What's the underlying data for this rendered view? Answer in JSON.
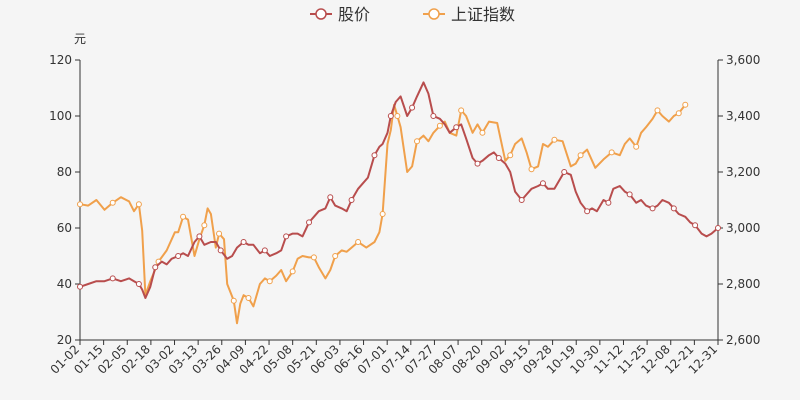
{
  "chart_data": {
    "type": "line",
    "unit_left": "元",
    "x_ticks": [
      "01-02",
      "01-15",
      "02-05",
      "02-18",
      "03-02",
      "03-13",
      "03-26",
      "04-09",
      "04-22",
      "05-08",
      "05-21",
      "06-03",
      "06-16",
      "07-01",
      "07-14",
      "07-27",
      "08-07",
      "08-20",
      "09-02",
      "09-15",
      "09-28",
      "10-19",
      "10-30",
      "11-12",
      "11-25",
      "12-08",
      "12-21",
      "12-31"
    ],
    "y_left": {
      "ticks": [
        "20",
        "40",
        "60",
        "80",
        "100",
        "120"
      ],
      "min": 20,
      "max": 120
    },
    "y_right": {
      "ticks": [
        "2,600",
        "2,800",
        "3,000",
        "3,200",
        "3,400",
        "3,600"
      ],
      "min": 2600,
      "max": 3600
    },
    "series": [
      {
        "name": "上证指数",
        "axis": "right",
        "color": "#f0a04b",
        "points": [
          [
            0,
            3085
          ],
          [
            0.5,
            3080
          ],
          [
            1,
            3100
          ],
          [
            1.5,
            3065
          ],
          [
            2,
            3090
          ],
          [
            2.5,
            3110
          ],
          [
            3,
            3095
          ],
          [
            3.3,
            3060
          ],
          [
            3.6,
            3085
          ],
          [
            3.8,
            2990
          ],
          [
            4,
            2760
          ],
          [
            4.3,
            2810
          ],
          [
            4.8,
            2880
          ],
          [
            5.3,
            2920
          ],
          [
            5.8,
            2985
          ],
          [
            6,
            2985
          ],
          [
            6.3,
            3040
          ],
          [
            6.6,
            3030
          ],
          [
            7,
            2900
          ],
          [
            7.3,
            2960
          ],
          [
            7.6,
            3010
          ],
          [
            7.8,
            3070
          ],
          [
            8,
            3050
          ],
          [
            8.3,
            2930
          ],
          [
            8.5,
            2980
          ],
          [
            8.8,
            2960
          ],
          [
            9,
            2800
          ],
          [
            9.2,
            2770
          ],
          [
            9.4,
            2740
          ],
          [
            9.6,
            2660
          ],
          [
            9.8,
            2730
          ],
          [
            10,
            2760
          ],
          [
            10.3,
            2750
          ],
          [
            10.6,
            2720
          ],
          [
            11,
            2800
          ],
          [
            11.3,
            2820
          ],
          [
            11.6,
            2810
          ],
          [
            12,
            2830
          ],
          [
            12.3,
            2850
          ],
          [
            12.6,
            2810
          ],
          [
            13,
            2845
          ],
          [
            13.3,
            2890
          ],
          [
            13.6,
            2900
          ],
          [
            14,
            2895
          ],
          [
            14.3,
            2895
          ],
          [
            14.6,
            2860
          ],
          [
            15,
            2820
          ],
          [
            15.3,
            2850
          ],
          [
            15.6,
            2900
          ],
          [
            16,
            2920
          ],
          [
            16.3,
            2915
          ],
          [
            16.6,
            2930
          ],
          [
            17,
            2950
          ],
          [
            17.5,
            2930
          ],
          [
            18,
            2950
          ],
          [
            18.3,
            2985
          ],
          [
            18.5,
            3050
          ],
          [
            18.8,
            3300
          ],
          [
            19,
            3350
          ],
          [
            19.2,
            3440
          ],
          [
            19.4,
            3400
          ],
          [
            19.6,
            3360
          ],
          [
            20,
            3200
          ],
          [
            20.3,
            3220
          ],
          [
            20.6,
            3310
          ],
          [
            21,
            3330
          ],
          [
            21.3,
            3310
          ],
          [
            21.6,
            3340
          ],
          [
            22,
            3365
          ],
          [
            22.3,
            3380
          ],
          [
            22.6,
            3340
          ],
          [
            23,
            3330
          ],
          [
            23.3,
            3420
          ],
          [
            23.6,
            3400
          ],
          [
            24,
            3340
          ],
          [
            24.3,
            3370
          ],
          [
            24.6,
            3340
          ],
          [
            25,
            3380
          ],
          [
            25.5,
            3375
          ],
          [
            26,
            3240
          ],
          [
            26.3,
            3260
          ],
          [
            26.6,
            3300
          ],
          [
            27,
            3320
          ],
          [
            27.3,
            3270
          ],
          [
            27.6,
            3210
          ],
          [
            28,
            3220
          ],
          [
            28.3,
            3300
          ],
          [
            28.6,
            3290
          ],
          [
            29,
            3315
          ],
          [
            29.5,
            3310
          ],
          [
            30,
            3220
          ],
          [
            30.3,
            3230
          ],
          [
            30.6,
            3260
          ],
          [
            31,
            3280
          ],
          [
            31.5,
            3215
          ],
          [
            32,
            3245
          ],
          [
            32.5,
            3270
          ],
          [
            33,
            3260
          ],
          [
            33.3,
            3300
          ],
          [
            33.6,
            3320
          ],
          [
            34,
            3290
          ],
          [
            34.3,
            3340
          ],
          [
            34.6,
            3360
          ],
          [
            35,
            3390
          ],
          [
            35.3,
            3420
          ],
          [
            35.6,
            3400
          ],
          [
            36,
            3380
          ],
          [
            36.3,
            3400
          ],
          [
            36.6,
            3410
          ],
          [
            37,
            3440
          ]
        ]
      },
      {
        "name": "股价",
        "axis": "left",
        "color": "#b84d4d",
        "points": [
          [
            0,
            39
          ],
          [
            0.5,
            40
          ],
          [
            1,
            41
          ],
          [
            1.5,
            41
          ],
          [
            2,
            42
          ],
          [
            2.5,
            41
          ],
          [
            3,
            42
          ],
          [
            3.3,
            41
          ],
          [
            3.6,
            40
          ],
          [
            3.8,
            38
          ],
          [
            4,
            35
          ],
          [
            4.3,
            39
          ],
          [
            4.6,
            46
          ],
          [
            5,
            48
          ],
          [
            5.3,
            47
          ],
          [
            5.6,
            49
          ],
          [
            6,
            50
          ],
          [
            6.3,
            51
          ],
          [
            6.6,
            50
          ],
          [
            7,
            55
          ],
          [
            7.3,
            57
          ],
          [
            7.6,
            54
          ],
          [
            8,
            55
          ],
          [
            8.3,
            55
          ],
          [
            8.6,
            52
          ],
          [
            9,
            49
          ],
          [
            9.3,
            50
          ],
          [
            9.6,
            53
          ],
          [
            10,
            55
          ],
          [
            10.3,
            54
          ],
          [
            10.6,
            54
          ],
          [
            11,
            51
          ],
          [
            11.3,
            52
          ],
          [
            11.6,
            50
          ],
          [
            12,
            51
          ],
          [
            12.3,
            52
          ],
          [
            12.6,
            57
          ],
          [
            13,
            58
          ],
          [
            13.3,
            58
          ],
          [
            13.6,
            57
          ],
          [
            14,
            62
          ],
          [
            14.3,
            64
          ],
          [
            14.6,
            66
          ],
          [
            15,
            67
          ],
          [
            15.3,
            71
          ],
          [
            15.6,
            68
          ],
          [
            16,
            67
          ],
          [
            16.3,
            66
          ],
          [
            16.6,
            70
          ],
          [
            17,
            74
          ],
          [
            17.3,
            76
          ],
          [
            17.6,
            78
          ],
          [
            18,
            86
          ],
          [
            18.3,
            89
          ],
          [
            18.5,
            90
          ],
          [
            18.8,
            94
          ],
          [
            19,
            100
          ],
          [
            19.3,
            105
          ],
          [
            19.6,
            107
          ],
          [
            20,
            100
          ],
          [
            20.3,
            103
          ],
          [
            20.6,
            107
          ],
          [
            21,
            112
          ],
          [
            21.3,
            108
          ],
          [
            21.6,
            100
          ],
          [
            22,
            99
          ],
          [
            22.3,
            97
          ],
          [
            22.6,
            94
          ],
          [
            23,
            96
          ],
          [
            23.3,
            97
          ],
          [
            23.6,
            92
          ],
          [
            24,
            85
          ],
          [
            24.3,
            83
          ],
          [
            24.6,
            84
          ],
          [
            25,
            86
          ],
          [
            25.3,
            87
          ],
          [
            25.6,
            85
          ],
          [
            26,
            83
          ],
          [
            26.3,
            80
          ],
          [
            26.6,
            73
          ],
          [
            27,
            70
          ],
          [
            27.3,
            72
          ],
          [
            27.6,
            74
          ],
          [
            28,
            75
          ],
          [
            28.3,
            76
          ],
          [
            28.6,
            74
          ],
          [
            29,
            74
          ],
          [
            29.3,
            77
          ],
          [
            29.6,
            80
          ],
          [
            30,
            79
          ],
          [
            30.3,
            73
          ],
          [
            30.6,
            69
          ],
          [
            31,
            66
          ],
          [
            31.3,
            67
          ],
          [
            31.6,
            66
          ],
          [
            32,
            70
          ],
          [
            32.3,
            69
          ],
          [
            32.6,
            74
          ],
          [
            33,
            75
          ],
          [
            33.3,
            73
          ],
          [
            33.6,
            72
          ],
          [
            34,
            69
          ],
          [
            34.3,
            70
          ],
          [
            34.6,
            68
          ],
          [
            35,
            67
          ],
          [
            35.3,
            68
          ],
          [
            35.6,
            70
          ],
          [
            36,
            69
          ],
          [
            36.3,
            67
          ],
          [
            36.6,
            65
          ],
          [
            37,
            64
          ],
          [
            37.3,
            62
          ],
          [
            37.6,
            61
          ],
          [
            38,
            58
          ],
          [
            38.3,
            57
          ],
          [
            38.6,
            58
          ],
          [
            39,
            60
          ]
        ]
      }
    ],
    "x_max": 39
  }
}
